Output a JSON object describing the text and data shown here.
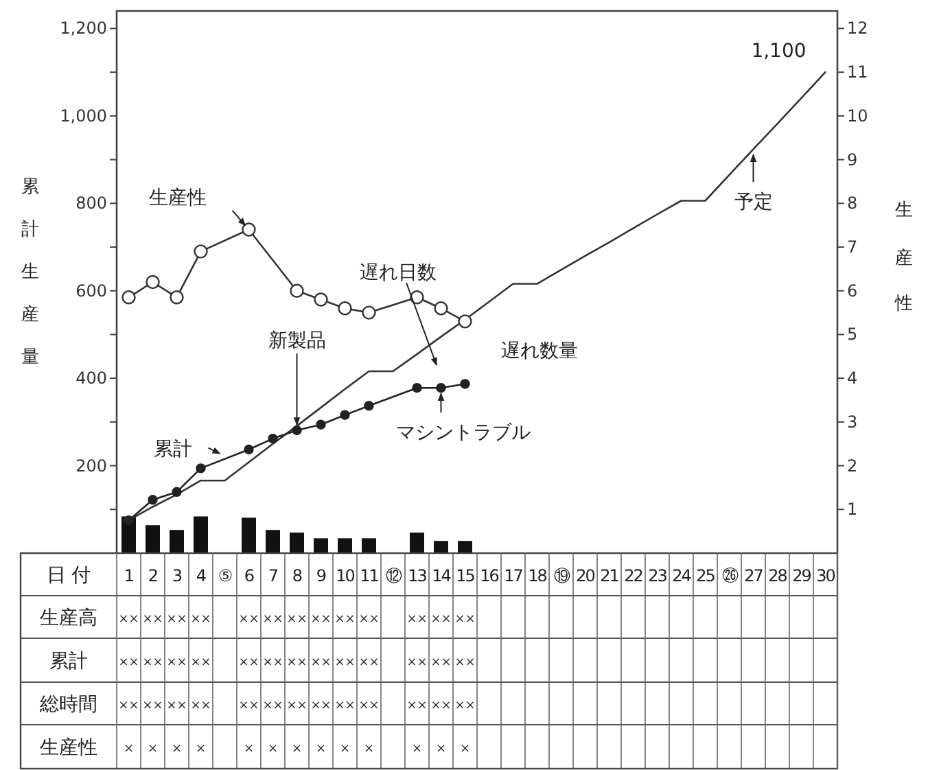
{
  "chart_data": [
    {
      "type": "line",
      "categories": [
        "1",
        "2",
        "3",
        "4",
        "⑤",
        "6",
        "7",
        "8",
        "9",
        "10",
        "11",
        "⑫",
        "13",
        "14",
        "15",
        "16",
        "17",
        "18",
        "⑲",
        "20",
        "21",
        "22",
        "23",
        "24",
        "25",
        "㉖",
        "27",
        "28",
        "29",
        "30"
      ],
      "xlabel": "日 付",
      "ylabel": "累計生産量",
      "y2label": "生産性",
      "ylim": [
        0,
        1240
      ],
      "yticks": [
        {
          "value": 100,
          "label": null
        },
        {
          "value": 200,
          "label": "200"
        },
        {
          "value": 300,
          "label": null
        },
        {
          "value": 400,
          "label": "400"
        },
        {
          "value": 500,
          "label": null
        },
        {
          "value": 600,
          "label": "600"
        },
        {
          "value": 700,
          "label": null
        },
        {
          "value": 800,
          "label": "800"
        },
        {
          "value": 900,
          "label": null
        },
        {
          "value": 1000,
          "label": "1,000"
        },
        {
          "value": 1100,
          "label": null
        },
        {
          "value": 1200,
          "label": "1,200"
        }
      ],
      "y2lim": [
        0,
        12.4
      ],
      "y2ticks": [
        1,
        2,
        3,
        4,
        5,
        6,
        7,
        8,
        9,
        10,
        11,
        12
      ],
      "series": [
        {
          "type": "bar",
          "color": "#111111",
          "values": [
            84,
            64,
            53,
            84,
            null,
            81,
            53,
            47,
            34,
            34,
            34,
            null,
            47,
            28,
            28,
            null,
            null,
            null,
            null,
            null,
            null,
            null,
            null,
            null,
            null,
            null,
            null,
            null,
            null,
            null
          ]
        },
        {
          "type": "line",
          "color": "#333333",
          "values": [
            75,
            106,
            134,
            166,
            166,
            208,
            250,
            291,
            333,
            375,
            416,
            416,
            455,
            495,
            534,
            575,
            616,
            616,
            648,
            680,
            711,
            743,
            775,
            806,
            806,
            865,
            924,
            982,
            1041,
            1100
          ]
        },
        {
          "type": "line",
          "color": "#222222",
          "marker": "circle",
          "values": [
            75,
            122,
            140,
            194,
            null,
            237,
            262,
            281,
            294,
            316,
            337,
            null,
            378,
            378,
            387,
            null,
            null,
            null,
            null,
            null,
            null,
            null,
            null,
            null,
            null,
            null,
            null,
            null,
            null,
            null
          ]
        },
        {
          "type": "line",
          "axis": "y2",
          "color": "#333333",
          "marker": "circle",
          "values": [
            5.85,
            6.2,
            5.85,
            6.9,
            null,
            7.4,
            null,
            6.0,
            5.8,
            5.6,
            5.5,
            null,
            5.85,
            5.6,
            5.3,
            null,
            null,
            null,
            null,
            null,
            null,
            null,
            null,
            null,
            null,
            null,
            null,
            null,
            null,
            null
          ]
        }
      ],
      "annotations": [
        {
          "text": "生産性",
          "x": "6",
          "y": 740
        },
        {
          "text": "累計",
          "x": "⑤",
          "y": 222
        },
        {
          "text": "新製品",
          "x": "8",
          "y": 281
        },
        "遅れ日数",
        {
          "text": "マシントラブル",
          "x": "14",
          "y": 378
        },
        "遅れ数量",
        {
          "text": "予定",
          "x": "27",
          "y": 924
        },
        {
          "text": "1,100",
          "x": "30",
          "y": 1100
        }
      ]
    },
    {
      "type": "other",
      "y_categories": [
        "生産高",
        "累計",
        "総時間",
        "生産性"
      ],
      "cell_labels": [
        [
          "××",
          "××",
          "××",
          "××",
          null,
          "××",
          "××",
          "××",
          "××",
          "××",
          "××",
          null,
          "××",
          "××",
          "××",
          null,
          null,
          null,
          null,
          null,
          null,
          null,
          null,
          null,
          null,
          null,
          null,
          null,
          null,
          null
        ],
        [
          "××",
          "××",
          "××",
          "××",
          null,
          "××",
          "××",
          "××",
          "××",
          "××",
          "××",
          null,
          "××",
          "××",
          "××",
          null,
          null,
          null,
          null,
          null,
          null,
          null,
          null,
          null,
          null,
          null,
          null,
          null,
          null,
          null
        ],
        [
          "××",
          "××",
          "××",
          "××",
          null,
          "××",
          "××",
          "××",
          "××",
          "××",
          "××",
          null,
          "××",
          "××",
          "××",
          null,
          null,
          null,
          null,
          null,
          null,
          null,
          null,
          null,
          null,
          null,
          null,
          null,
          null,
          null
        ],
        [
          "×",
          "×",
          "×",
          "×",
          null,
          "×",
          "×",
          "×",
          "×",
          "×",
          "×",
          null,
          "×",
          "×",
          "×",
          null,
          null,
          null,
          null,
          null,
          null,
          null,
          null,
          null,
          null,
          null,
          null,
          null,
          null,
          null
        ]
      ]
    }
  ]
}
